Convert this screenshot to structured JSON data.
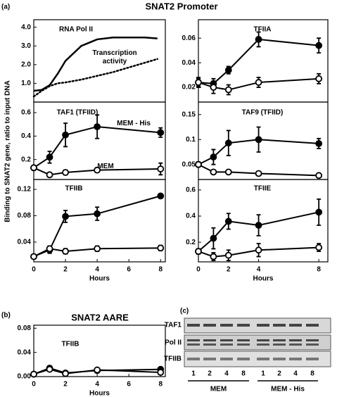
{
  "title": "SNAT2 Promoter",
  "panel_labels": [
    "(a)",
    "(b)",
    "(c)"
  ],
  "y_label": "Binding  to  SNAT2  gene, ratio to input  DNA",
  "chart_data": [
    {
      "type": "line",
      "title": "RNA Pol II",
      "x": [
        0,
        0.5,
        1,
        1.5,
        2,
        3,
        4,
        5,
        6,
        7,
        7.8
      ],
      "xlim": [
        0,
        8.3
      ],
      "ylim": [
        0,
        4.4
      ],
      "yticks": [
        {
          "value": 1,
          "label": "1.0"
        },
        {
          "value": 2,
          "label": "2.0"
        },
        {
          "value": 3,
          "label": "3.0"
        },
        {
          "value": 4,
          "label": "4.0"
        }
      ],
      "series": [
        {
          "color": "#000000",
          "line_style": "solid",
          "values": [
            0.6,
            0.65,
            0.9,
            1.5,
            2.2,
            3.0,
            3.35,
            3.45,
            3.45,
            3.45,
            3.4
          ]
        },
        {
          "name": "Transcription activity",
          "color": "#000000",
          "line_style": "dotted",
          "values": [
            0.3,
            0.6,
            0.85,
            1.0,
            1.05,
            1.2,
            1.4,
            1.6,
            1.85,
            2.1,
            2.3
          ]
        }
      ]
    },
    {
      "type": "line",
      "title": "TFIIA",
      "x": [
        0,
        1,
        2,
        4,
        8
      ],
      "xlim": [
        0,
        8.6
      ],
      "ylim": [
        0.008,
        0.075
      ],
      "yticks": [
        0.02,
        0.04,
        0.06
      ],
      "series": [
        {
          "color": "#000000",
          "marker": "filled",
          "values": [
            0.024,
            0.023,
            0.034,
            0.059,
            0.054
          ],
          "errors": [
            0.003,
            0.004,
            0.003,
            0.006,
            0.006
          ]
        },
        {
          "color": "#000000",
          "marker": "open",
          "values": [
            0.024,
            0.02,
            0.018,
            0.024,
            0.027
          ],
          "errors": [
            0.004,
            0.005,
            0.004,
            0.004,
            0.004
          ]
        }
      ]
    },
    {
      "type": "line",
      "title": "TAF1 (TFIID)",
      "x": [
        0,
        1,
        2,
        4,
        8
      ],
      "xlim": [
        0,
        8.3
      ],
      "ylim": [
        0.03,
        0.69
      ],
      "yticks": [
        0.2,
        0.4,
        0.6
      ],
      "series": [
        {
          "name": "MEM - His",
          "color": "#000000",
          "marker": "filled",
          "values": [
            0.13,
            0.22,
            0.41,
            0.48,
            0.43
          ],
          "errors": [
            0.02,
            0.05,
            0.1,
            0.1,
            0.04
          ]
        },
        {
          "name": "MEM",
          "color": "#000000",
          "marker": "open",
          "values": [
            0.13,
            0.07,
            0.09,
            0.11,
            0.12
          ],
          "errors": [
            0.02,
            0.02,
            0.02,
            0.02,
            0.05
          ]
        }
      ]
    },
    {
      "type": "line",
      "title": "TAF9 (TFIID)",
      "x": [
        0,
        1,
        2,
        4,
        8
      ],
      "xlim": [
        0,
        8.6
      ],
      "ylim": [
        0.02,
        0.175
      ],
      "yticks": [
        0.05,
        0.1,
        0.15
      ],
      "series": [
        {
          "color": "#000000",
          "marker": "filled",
          "values": [
            0.05,
            0.065,
            0.093,
            0.1,
            0.092
          ],
          "errors": [
            0.005,
            0.015,
            0.025,
            0.025,
            0.01
          ]
        },
        {
          "color": "#000000",
          "marker": "open",
          "values": [
            0.05,
            0.035,
            0.035,
            0.032,
            0.028
          ],
          "errors": [
            0.005,
            0.004,
            0.004,
            0.003,
            0.003
          ]
        }
      ]
    },
    {
      "type": "line",
      "title": "TFIIB",
      "x": [
        0,
        1,
        2,
        4,
        8
      ],
      "xlim": [
        0,
        8.3
      ],
      "xticks": [
        0,
        2,
        4,
        6,
        8
      ],
      "xlabel": "Hours",
      "ylim": [
        0.01,
        0.135
      ],
      "yticks": [
        0.04,
        0.08,
        0.12
      ],
      "series": [
        {
          "color": "#000000",
          "marker": "filled",
          "values": [
            0.018,
            0.028,
            0.079,
            0.083,
            0.11
          ],
          "errors": [
            0.002,
            0.005,
            0.009,
            0.01,
            0.003
          ]
        },
        {
          "color": "#000000",
          "marker": "open",
          "values": [
            0.018,
            0.03,
            0.026,
            0.03,
            0.031
          ],
          "errors": [
            0.002,
            0.004,
            0.004,
            0.004,
            0.004
          ]
        }
      ]
    },
    {
      "type": "line",
      "title": "TFIIE",
      "x": [
        0,
        1,
        2,
        4,
        8
      ],
      "xlim": [
        0,
        8.6
      ],
      "xticks": [
        0,
        2,
        4,
        8
      ],
      "xlabel": "Hours",
      "ylim": [
        0.05,
        0.68
      ],
      "yticks": [
        0.2,
        0.4,
        0.6
      ],
      "series": [
        {
          "color": "#000000",
          "marker": "filled",
          "values": [
            0.13,
            0.23,
            0.36,
            0.33,
            0.43
          ],
          "errors": [
            0.02,
            0.08,
            0.06,
            0.08,
            0.1
          ]
        },
        {
          "color": "#000000",
          "marker": "open",
          "values": [
            0.13,
            0.09,
            0.1,
            0.14,
            0.16
          ],
          "errors": [
            0.02,
            0.03,
            0.04,
            0.05,
            0.03
          ]
        }
      ]
    },
    {
      "type": "line",
      "title": "SNAT2 AARE",
      "subtitle": "TFIIB",
      "x": [
        0,
        1,
        2,
        4,
        8
      ],
      "xlim": [
        0,
        8.3
      ],
      "xticks": [
        0,
        2,
        4,
        6,
        8
      ],
      "xlabel": "Hours",
      "ylim": [
        0,
        0.085
      ],
      "yticks": [
        {
          "value": 0,
          "label": "0.00"
        },
        0.04,
        0.08
      ],
      "series": [
        {
          "color": "#000000",
          "marker": "filled",
          "values": [
            0.004,
            0.014,
            0.006,
            0.01,
            0.012
          ],
          "errors": [
            0.002,
            0.002,
            0.002,
            0.002,
            0.002
          ]
        },
        {
          "color": "#000000",
          "marker": "open",
          "values": [
            0.004,
            0.012,
            0.005,
            0.011,
            0.007
          ],
          "errors": [
            0.002,
            0.002,
            0.002,
            0.002,
            0.002
          ]
        }
      ]
    }
  ],
  "gel": {
    "rows": [
      "TAF1",
      "Pol II",
      "TFIIB"
    ],
    "lanes": [
      "1",
      "2",
      "4",
      "8",
      "1",
      "2",
      "4",
      "8"
    ],
    "groups": [
      "MEM",
      "MEM - His"
    ]
  }
}
